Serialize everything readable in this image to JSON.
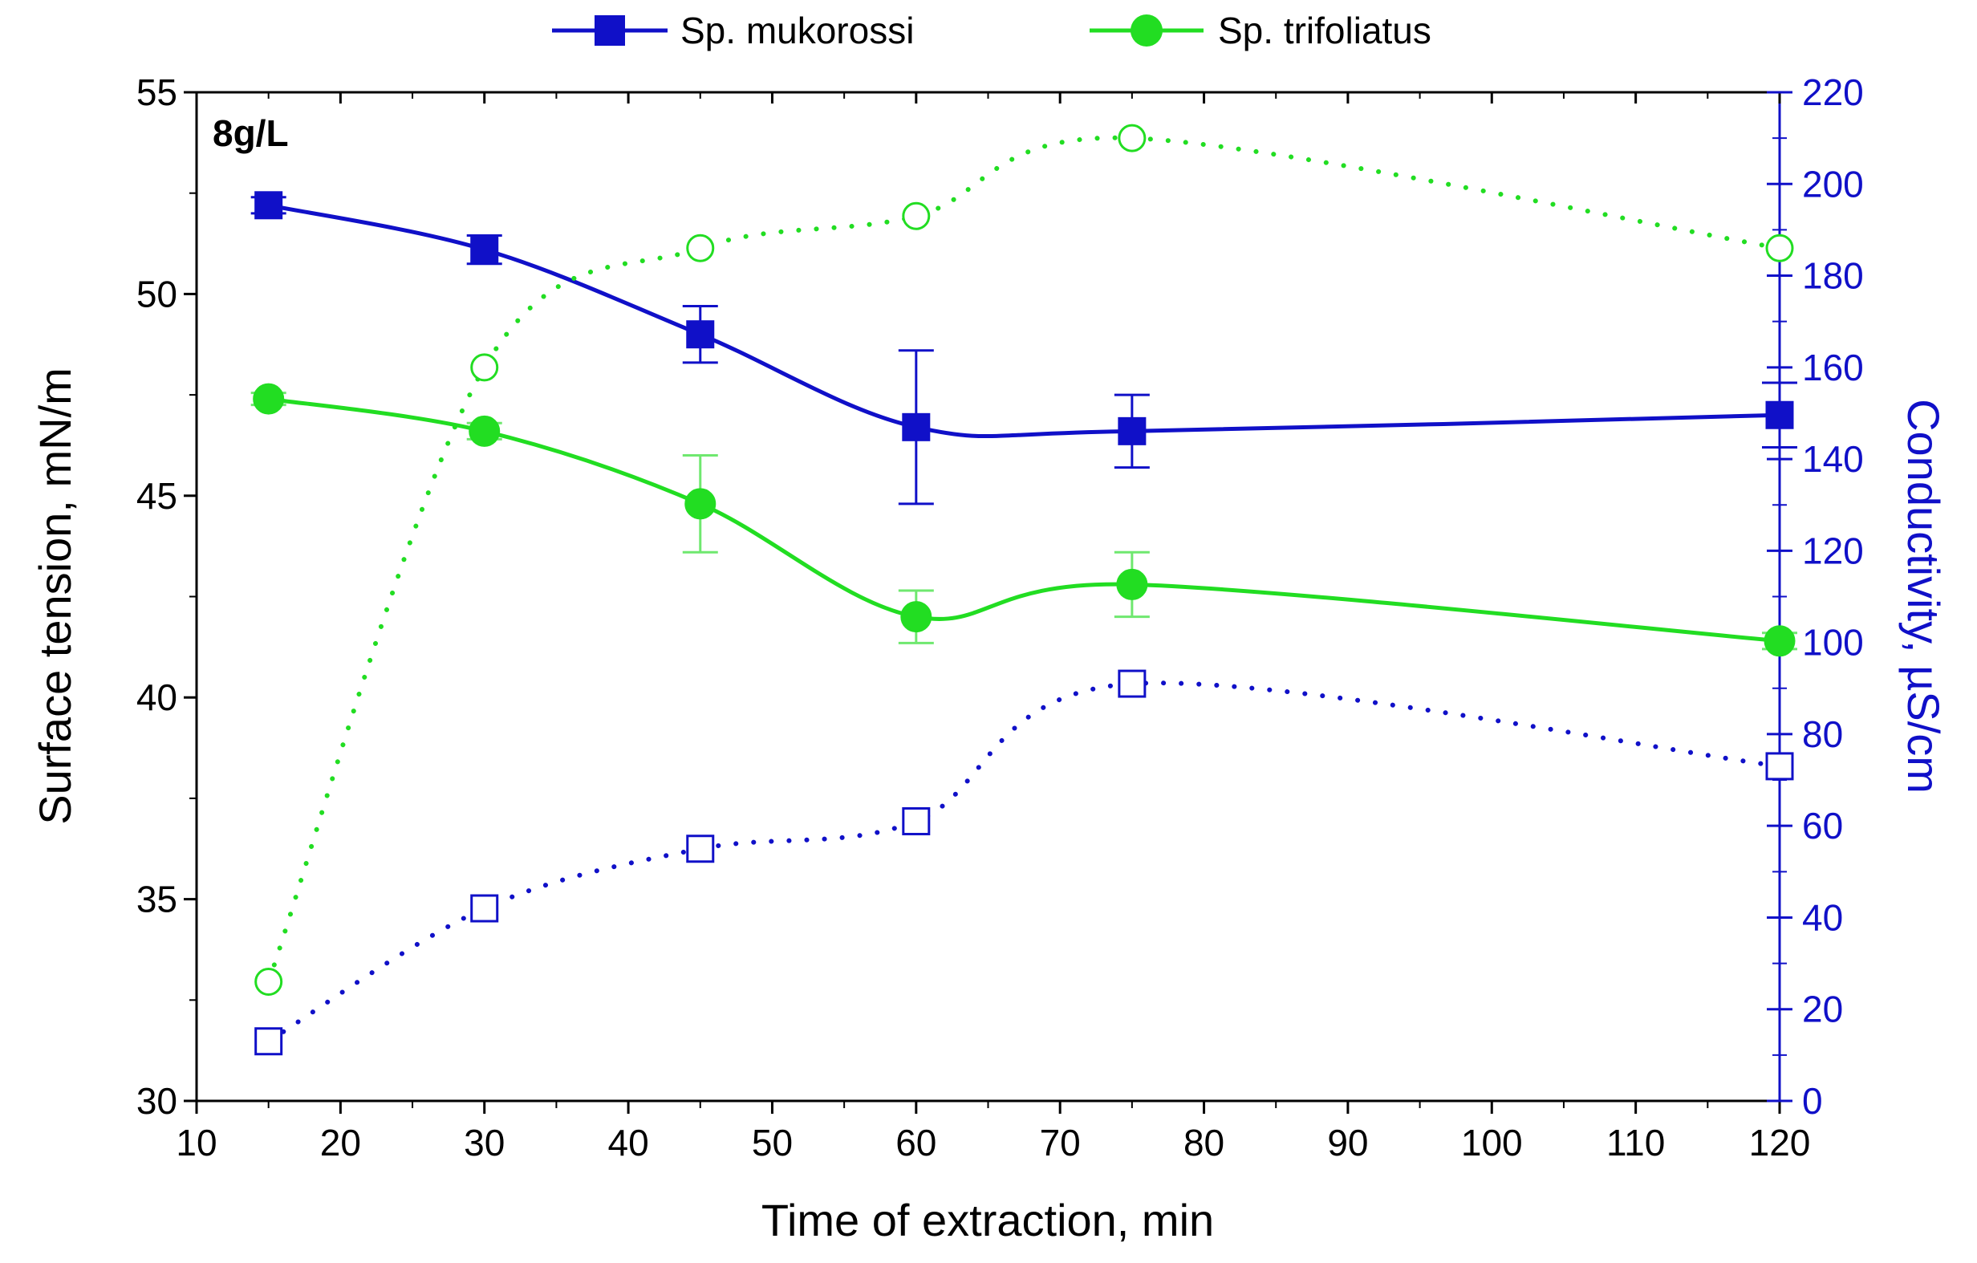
{
  "chart_data": {
    "type": "line",
    "title": "",
    "annotation": "8g/L",
    "xlabel": "Time of extraction, min",
    "ylabel": "Surface tension, mN/m",
    "y2label": "Conductivity, µS/cm",
    "xlim": [
      10,
      120
    ],
    "ylim": [
      30,
      55
    ],
    "y2lim": [
      0,
      220
    ],
    "xticks": [
      "10",
      "20",
      "30",
      "40",
      "50",
      "60",
      "70",
      "80",
      "90",
      "100",
      "110",
      "120"
    ],
    "yticks": [
      "30",
      "35",
      "40",
      "45",
      "50",
      "55"
    ],
    "y2ticks": [
      "0",
      "20",
      "40",
      "60",
      "80",
      "100",
      "120",
      "140",
      "160",
      "180",
      "200",
      "220"
    ],
    "legend": [
      {
        "name": "Sp. mukorossi",
        "color": "#1010c8",
        "marker": "square"
      },
      {
        "name": "Sp. trifoliatus",
        "color": "#22dd22",
        "marker": "circle"
      }
    ],
    "series": [
      {
        "name": "Sp. mukorossi surface tension",
        "axis": "left",
        "style": "solid",
        "marker": "square",
        "filled": true,
        "color": "#1010c8",
        "x": [
          15,
          30,
          45,
          60,
          75,
          120
        ],
        "y": [
          52.2,
          51.1,
          49.0,
          46.7,
          46.6,
          47.0
        ],
        "err": [
          0.2,
          0.35,
          0.7,
          1.9,
          0.9,
          0.8
        ]
      },
      {
        "name": "Sp. trifoliatus surface tension",
        "axis": "left",
        "style": "solid",
        "marker": "circle",
        "filled": true,
        "color": "#22dd22",
        "x": [
          15,
          30,
          45,
          60,
          75,
          120
        ],
        "y": [
          47.4,
          46.6,
          44.8,
          42.0,
          42.8,
          41.4
        ],
        "err": [
          0.15,
          0.2,
          1.2,
          0.65,
          0.8,
          0.2
        ]
      },
      {
        "name": "Sp. mukorossi conductivity",
        "axis": "right",
        "style": "dotted",
        "marker": "square",
        "filled": false,
        "color": "#1010c8",
        "x": [
          15,
          30,
          45,
          60,
          75,
          120
        ],
        "y": [
          13,
          42,
          55,
          61,
          91,
          73
        ]
      },
      {
        "name": "Sp. trifoliatus conductivity",
        "axis": "right",
        "style": "dotted",
        "marker": "circle",
        "filled": false,
        "color": "#22dd22",
        "x": [
          15,
          30,
          45,
          60,
          75,
          120
        ],
        "y": [
          26,
          160,
          186,
          193,
          210,
          186
        ]
      }
    ]
  }
}
